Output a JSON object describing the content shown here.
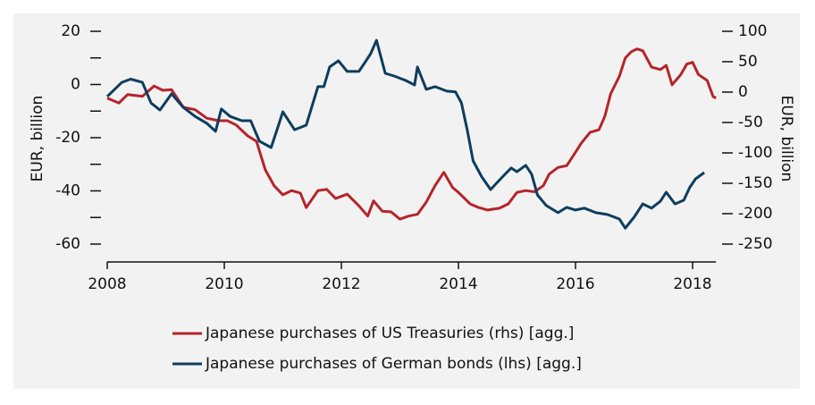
{
  "chart_data": {
    "type": "line",
    "y_label": "EUR, billion",
    "y2_label": "EUR, billion",
    "xlim": [
      2008,
      2018.4
    ],
    "xticks": [
      2008,
      2010,
      2012,
      2014,
      2016,
      2018
    ],
    "ylim": [
      -60,
      20
    ],
    "yticks": [
      -60,
      -40,
      -20,
      0,
      20
    ],
    "yminor_ticks": [
      -50,
      -30,
      -10,
      10
    ],
    "y2lim": [
      -250,
      100
    ],
    "y2ticks": [
      -250,
      -200,
      -150,
      -100,
      -50,
      0,
      50,
      100
    ],
    "legend": "bottom",
    "series": [
      {
        "name": "Japanese purchases of US Treasuries (rhs) [agg.]",
        "color": "#b5242a",
        "axis": "y2",
        "x": [
          2008.0,
          2008.2,
          2008.35,
          2008.6,
          2008.8,
          2008.95,
          2009.1,
          2009.3,
          2009.5,
          2009.7,
          2009.9,
          2010.05,
          2010.2,
          2010.4,
          2010.55,
          2010.7,
          2010.85,
          2011.0,
          2011.15,
          2011.3,
          2011.4,
          2011.6,
          2011.75,
          2011.9,
          2012.1,
          2012.3,
          2012.45,
          2012.55,
          2012.7,
          2012.85,
          2013.0,
          2013.15,
          2013.3,
          2013.45,
          2013.6,
          2013.75,
          2013.9,
          2014.0,
          2014.2,
          2014.35,
          2014.5,
          2014.7,
          2014.85,
          2015.0,
          2015.15,
          2015.3,
          2015.45,
          2015.55,
          2015.7,
          2015.85,
          2016.0,
          2016.1,
          2016.25,
          2016.4,
          2016.5,
          2016.6,
          2016.75,
          2016.85,
          2016.95,
          2017.05,
          2017.15,
          2017.3,
          2017.45,
          2017.55,
          2017.65,
          2017.8,
          2017.9,
          2018.0,
          2018.1,
          2018.25,
          2018.35,
          2018.4
        ],
        "values": [
          -10,
          -18,
          -4,
          -7,
          10,
          3,
          4,
          -25,
          -29,
          -43,
          -47,
          -47,
          -54,
          -72,
          -81,
          -128,
          -154,
          -169,
          -162,
          -166,
          -190,
          -162,
          -160,
          -175,
          -168,
          -187,
          -204,
          -179,
          -196,
          -197,
          -209,
          -204,
          -201,
          -181,
          -154,
          -132,
          -157,
          -165,
          -184,
          -190,
          -194,
          -191,
          -184,
          -165,
          -162,
          -164,
          -154,
          -135,
          -124,
          -121,
          -99,
          -84,
          -66,
          -62,
          -40,
          -3,
          26,
          56,
          66,
          71,
          68,
          41,
          37,
          44,
          12,
          29,
          46,
          49,
          29,
          19,
          -7,
          -10
        ]
      },
      {
        "name": "Japanese purchases of German bonds (lhs) [agg.]",
        "color": "#0d3d5e",
        "axis": "y",
        "x": [
          2008.0,
          2008.25,
          2008.4,
          2008.6,
          2008.75,
          2008.9,
          2009.1,
          2009.3,
          2009.5,
          2009.7,
          2009.85,
          2009.95,
          2010.1,
          2010.3,
          2010.45,
          2010.6,
          2010.8,
          2010.9,
          2011.0,
          2011.2,
          2011.4,
          2011.6,
          2011.7,
          2011.8,
          2011.95,
          2012.1,
          2012.3,
          2012.4,
          2012.5,
          2012.6,
          2012.75,
          2012.9,
          2013.1,
          2013.25,
          2013.3,
          2013.45,
          2013.6,
          2013.8,
          2013.95,
          2014.05,
          2014.15,
          2014.25,
          2014.4,
          2014.55,
          2014.75,
          2014.9,
          2015.0,
          2015.15,
          2015.25,
          2015.35,
          2015.5,
          2015.7,
          2015.85,
          2016.0,
          2016.15,
          2016.35,
          2016.55,
          2016.75,
          2016.85,
          2017.0,
          2017.15,
          2017.3,
          2017.45,
          2017.55,
          2017.7,
          2017.85,
          2017.95,
          2018.05,
          2018.2
        ],
        "values": [
          -4.5,
          0.8,
          2,
          0.8,
          -7,
          -9.6,
          -3.5,
          -8.6,
          -12,
          -14.6,
          -17.6,
          -9.2,
          -12,
          -13.6,
          -13.6,
          -21.3,
          -23.7,
          -17,
          -10.3,
          -17,
          -15.3,
          -0.8,
          -0.8,
          6.6,
          8.9,
          4.9,
          4.9,
          8.2,
          11.6,
          16.6,
          4.2,
          3.2,
          1.5,
          -0.2,
          6.6,
          -1.8,
          -0.8,
          -2.5,
          -2.8,
          -6.9,
          -17,
          -28.7,
          -34.8,
          -39.5,
          -34.8,
          -31.4,
          -32.8,
          -30.4,
          -33.7,
          -41.5,
          -45.5,
          -48.2,
          -46.2,
          -47.2,
          -46.5,
          -48.2,
          -48.9,
          -50.6,
          -54,
          -49.9,
          -44.9,
          -46.5,
          -43.9,
          -40.5,
          -44.9,
          -43.5,
          -38.8,
          -35.5,
          -33.1
        ]
      }
    ]
  }
}
